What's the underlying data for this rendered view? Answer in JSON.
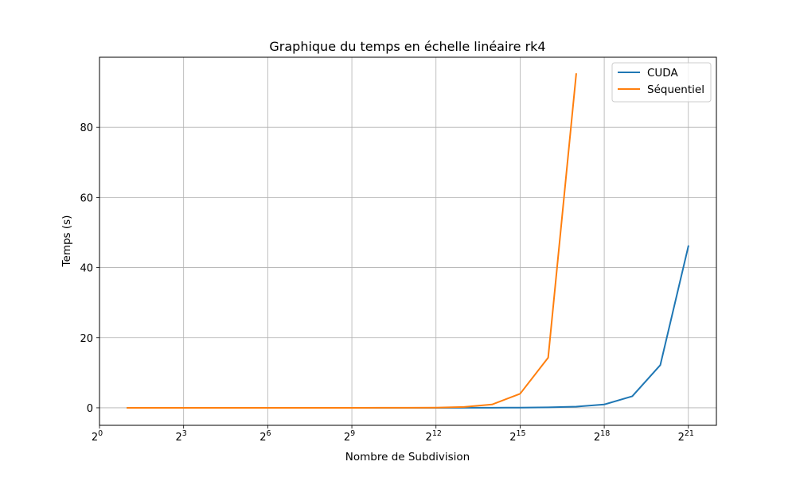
{
  "chart_data": {
    "type": "line",
    "title": "Graphique du temps en échelle linéaire rk4",
    "xlabel": "Nombre de Subdivision",
    "ylabel": "Temps (s)",
    "x_scale": "log2",
    "xlim_exponent": [
      0,
      22
    ],
    "ylim": [
      -5,
      100
    ],
    "grid": true,
    "legend_position": "top-right",
    "x_ticks": [
      {
        "exp": 0,
        "base": "2",
        "sup": "0"
      },
      {
        "exp": 3,
        "base": "2",
        "sup": "3"
      },
      {
        "exp": 6,
        "base": "2",
        "sup": "6"
      },
      {
        "exp": 9,
        "base": "2",
        "sup": "9"
      },
      {
        "exp": 12,
        "base": "2",
        "sup": "12"
      },
      {
        "exp": 15,
        "base": "2",
        "sup": "15"
      },
      {
        "exp": 18,
        "base": "2",
        "sup": "18"
      },
      {
        "exp": 21,
        "base": "2",
        "sup": "21"
      }
    ],
    "y_ticks": [
      0,
      20,
      40,
      60,
      80
    ],
    "series": [
      {
        "name": "CUDA",
        "color": "#1f77b4",
        "x_exponent": [
          1,
          2,
          3,
          4,
          5,
          6,
          7,
          8,
          9,
          10,
          11,
          12,
          13,
          14,
          15,
          16,
          17,
          18,
          19,
          20,
          21
        ],
        "y": [
          0,
          0,
          0,
          0,
          0,
          0,
          0,
          0,
          0,
          0,
          0,
          0,
          0.01,
          0.02,
          0.05,
          0.12,
          0.33,
          0.95,
          3.3,
          12.2,
          46.1
        ]
      },
      {
        "name": "Séquentiel",
        "color": "#ff7f0e",
        "x_exponent": [
          1,
          2,
          3,
          4,
          5,
          6,
          7,
          8,
          9,
          10,
          11,
          12,
          13,
          14,
          15,
          16,
          17
        ],
        "y": [
          0,
          0,
          0,
          0,
          0,
          0,
          0,
          0,
          0,
          0.01,
          0.02,
          0.06,
          0.24,
          0.95,
          4.0,
          14.3,
          95.2
        ]
      }
    ]
  }
}
